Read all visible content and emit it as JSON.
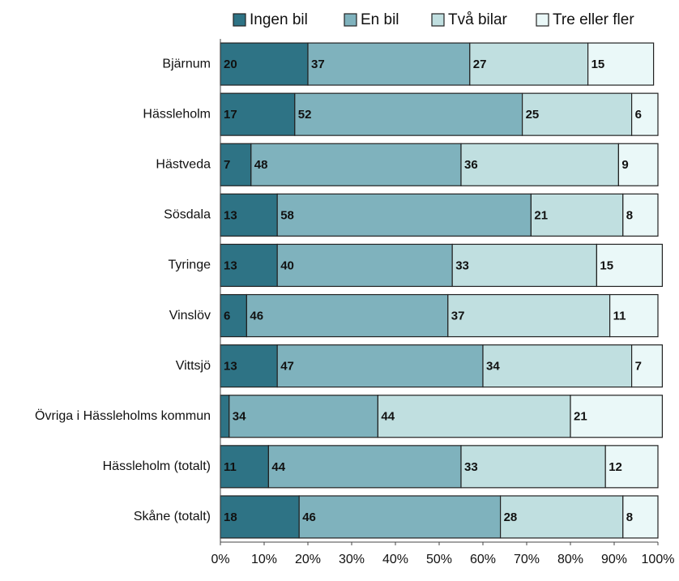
{
  "chart_data": {
    "type": "stacked_barh",
    "categories": [
      "Bjärnum",
      "Hässleholm",
      "Hästveda",
      "Sösdala",
      "Tyringe",
      "Vinslöv",
      "Vittsjö",
      "Övriga i Hässleholms kommun",
      "Hässleholm (totalt)",
      "Skåne (totalt)"
    ],
    "series": [
      {
        "name": "Ingen bil",
        "color": "#2e7385",
        "values": [
          20,
          17,
          7,
          13,
          13,
          6,
          13,
          2,
          11,
          18
        ],
        "value_labels": [
          "20",
          "17",
          "7",
          "13",
          "13",
          "6",
          "13",
          null,
          "11",
          "18"
        ]
      },
      {
        "name": "En bil",
        "color": "#7fb2bd",
        "values": [
          37,
          52,
          48,
          58,
          40,
          46,
          47,
          34,
          44,
          46
        ]
      },
      {
        "name": "Två bilar",
        "color": "#c0dfe0",
        "values": [
          27,
          25,
          36,
          21,
          33,
          37,
          34,
          44,
          33,
          28
        ]
      },
      {
        "name": "Tre eller fler",
        "color": "#eaf8f8",
        "values": [
          15,
          6,
          9,
          8,
          15,
          11,
          7,
          21,
          12,
          8
        ]
      }
    ],
    "xlim": [
      0,
      100
    ],
    "xticks": [
      {
        "value": 0,
        "label": "0%"
      },
      {
        "value": 10,
        "label": "10%"
      },
      {
        "value": 20,
        "label": "20%"
      },
      {
        "value": 30,
        "label": "30%"
      },
      {
        "value": 40,
        "label": "40%"
      },
      {
        "value": 50,
        "label": "50%"
      },
      {
        "value": 60,
        "label": "60%"
      },
      {
        "value": 70,
        "label": "70%"
      },
      {
        "value": 80,
        "label": "80%"
      },
      {
        "value": 90,
        "label": "90%"
      },
      {
        "value": 100,
        "label": "100%"
      }
    ],
    "legend": "top"
  }
}
